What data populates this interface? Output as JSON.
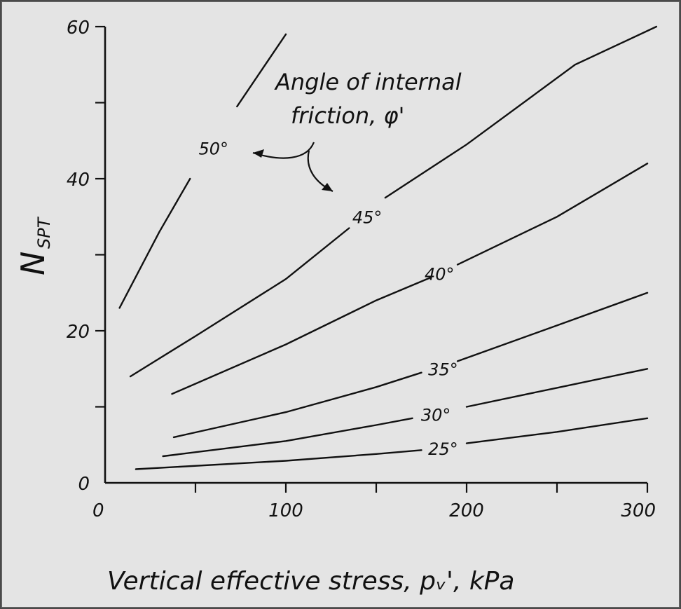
{
  "chart_data": {
    "type": "line",
    "title": "",
    "xlabel": "Vertical effective stress, pᵥ', kPa",
    "ylabel_main": "N",
    "ylabel_sub": "SPT",
    "xlim": [
      0,
      300
    ],
    "ylim": [
      0,
      60
    ],
    "x_ticks": [
      0,
      50,
      100,
      150,
      200,
      250,
      300
    ],
    "x_tick_labels": [
      "0",
      "100",
      "200",
      "300"
    ],
    "x_tick_label_values": [
      0,
      100,
      200,
      300
    ],
    "y_ticks": [
      0,
      10,
      20,
      30,
      40,
      50,
      60
    ],
    "y_tick_labels": [
      "0",
      "20",
      "40",
      "60"
    ],
    "y_tick_label_values": [
      0,
      20,
      40,
      60
    ],
    "grid": false,
    "annotation": {
      "text_line1": "Angle of internal",
      "text_line2": "friction, φ'"
    },
    "series": [
      {
        "label": "50°",
        "x": [
          8,
          30,
          55,
          75,
          100
        ],
        "y": [
          23,
          33,
          43,
          51,
          59
        ]
      },
      {
        "label": "45°",
        "x": [
          14,
          50,
          100,
          135,
          155,
          200,
          260,
          305
        ],
        "y": [
          14,
          19.3,
          26.8,
          33.5,
          37.5,
          44.5,
          55,
          60
        ]
      },
      {
        "label": "40°",
        "x": [
          37,
          100,
          150,
          180,
          195,
          250,
          300
        ],
        "y": [
          11.7,
          18.2,
          24,
          27,
          28.7,
          35,
          42
        ]
      },
      {
        "label": "35°",
        "x": [
          38,
          100,
          150,
          175,
          195,
          250,
          300
        ],
        "y": [
          6,
          9.3,
          12.6,
          14.5,
          16,
          20.7,
          25
        ]
      },
      {
        "label": "30°",
        "x": [
          32,
          100,
          150,
          170,
          200,
          250,
          300
        ],
        "y": [
          3.5,
          5.5,
          7.6,
          8.5,
          10,
          12.5,
          15
        ]
      },
      {
        "label": "25°",
        "x": [
          17,
          100,
          150,
          175,
          200,
          250,
          300
        ],
        "y": [
          1.8,
          2.9,
          3.8,
          4.3,
          5.2,
          6.7,
          8.5
        ]
      }
    ]
  }
}
